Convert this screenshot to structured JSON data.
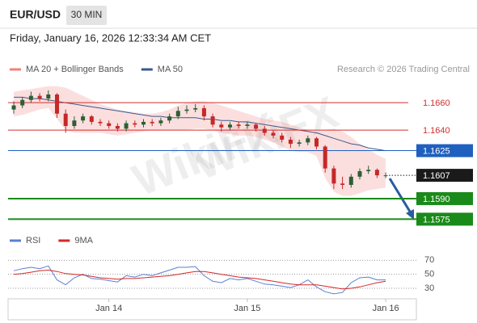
{
  "header": {
    "symbol": "EUR/USD",
    "timeframe": "30 MIN",
    "timestamp": "Friday, January 16, 2026 12:33:34 AM CET"
  },
  "watermark": "WikiFX",
  "chart_data": [
    {
      "type": "candlestick",
      "credit": "Research © 2026 Trading Central",
      "categories": [
        null,
        null,
        null,
        null,
        null,
        null,
        null,
        null,
        null,
        null,
        null,
        "Jan 14",
        null,
        null,
        null,
        null,
        null,
        null,
        null,
        null,
        null,
        null,
        null,
        null,
        null,
        null,
        null,
        "Jan 15",
        null,
        null,
        null,
        null,
        null,
        null,
        null,
        null,
        null,
        null,
        null,
        null,
        null,
        null,
        null,
        "Jan 16"
      ],
      "open": [
        1.1655,
        1.1658,
        1.1662,
        1.1665,
        1.1663,
        1.1666,
        1.1652,
        1.1643,
        1.1647,
        1.165,
        1.1646,
        1.1645,
        1.1643,
        1.1641,
        1.1645,
        1.1644,
        1.1646,
        1.1645,
        1.1647,
        1.165,
        1.1654,
        1.1655,
        1.1656,
        1.165,
        1.1644,
        1.1642,
        1.1644,
        1.1643,
        1.1644,
        1.1641,
        1.1638,
        1.1636,
        1.1633,
        1.163,
        1.1631,
        1.1634,
        1.1628,
        1.1612,
        1.1601,
        1.16,
        1.1606,
        1.161,
        1.1611,
        1.1607
      ],
      "high": [
        1.1661,
        1.1664,
        1.1668,
        1.1667,
        1.1669,
        1.1667,
        1.1655,
        1.165,
        1.1652,
        1.1651,
        1.1648,
        1.1647,
        1.1645,
        1.1647,
        1.1647,
        1.1648,
        1.1648,
        1.1649,
        1.1652,
        1.1657,
        1.1658,
        1.1659,
        1.1658,
        1.1652,
        1.1646,
        1.1646,
        1.1646,
        1.1646,
        1.1645,
        1.1643,
        1.164,
        1.1638,
        1.1635,
        1.1633,
        1.1636,
        1.1635,
        1.1629,
        1.1614,
        1.1606,
        1.1608,
        1.1612,
        1.1614,
        1.1612,
        1.1609
      ],
      "low": [
        1.1652,
        1.1656,
        1.166,
        1.1661,
        1.1661,
        1.1649,
        1.1638,
        1.1641,
        1.1645,
        1.1644,
        1.1643,
        1.1641,
        1.1639,
        1.1639,
        1.1642,
        1.1642,
        1.1643,
        1.1643,
        1.1645,
        1.1648,
        1.1652,
        1.1653,
        1.1647,
        1.1642,
        1.1639,
        1.164,
        1.1641,
        1.1641,
        1.1639,
        1.1636,
        1.1634,
        1.1631,
        1.1627,
        1.1628,
        1.1629,
        1.1626,
        1.1609,
        1.1597,
        1.1597,
        1.1598,
        1.1604,
        1.1608,
        1.1605,
        1.1605
      ],
      "close": [
        1.1658,
        1.1662,
        1.1665,
        1.1663,
        1.1666,
        1.1652,
        1.1643,
        1.1647,
        1.165,
        1.1646,
        1.1645,
        1.1643,
        1.1641,
        1.1645,
        1.1644,
        1.1646,
        1.1645,
        1.1647,
        1.165,
        1.1654,
        1.1655,
        1.1656,
        1.165,
        1.1644,
        1.1642,
        1.1644,
        1.1643,
        1.1644,
        1.1641,
        1.1638,
        1.1636,
        1.1633,
        1.163,
        1.1631,
        1.1634,
        1.1628,
        1.1612,
        1.1601,
        1.16,
        1.1606,
        1.161,
        1.1611,
        1.1607,
        1.1607
      ],
      "up_color": "#2f5e34",
      "down_color": "#c62828",
      "series": [
        {
          "name": "MA 20 + Bollinger Bands",
          "color": "#f08080",
          "upper": [
            1.1668,
            1.1669,
            1.167,
            1.1671,
            1.1672,
            1.1672,
            1.1671,
            1.1668,
            1.1665,
            1.1662,
            1.1659,
            1.1657,
            1.1655,
            1.1654,
            1.1653,
            1.1652,
            1.1652,
            1.1653,
            1.1655,
            1.1658,
            1.166,
            1.1661,
            1.1661,
            1.166,
            1.1658,
            1.1656,
            1.1654,
            1.1652,
            1.165,
            1.1648,
            1.1647,
            1.1646,
            1.1644,
            1.1642,
            1.164,
            1.1639,
            1.164,
            1.1641,
            1.1639,
            1.1635,
            1.163,
            1.1626,
            1.1622,
            1.1619
          ],
          "lower": [
            1.165,
            1.1651,
            1.1653,
            1.1655,
            1.1656,
            1.1648,
            1.164,
            1.1638,
            1.1638,
            1.1638,
            1.1638,
            1.1637,
            1.1636,
            1.1637,
            1.1638,
            1.1639,
            1.164,
            1.164,
            1.164,
            1.164,
            1.164,
            1.1641,
            1.1641,
            1.164,
            1.1638,
            1.1637,
            1.1636,
            1.1636,
            1.1635,
            1.1633,
            1.1631,
            1.1628,
            1.1625,
            1.1624,
            1.1624,
            1.1621,
            1.1605,
            1.1595,
            1.1592,
            1.1592,
            1.1594,
            1.1596,
            1.1597,
            1.1598
          ]
        },
        {
          "name": "MA 50",
          "color": "#3b5a8c",
          "values": [
            1.1664,
            1.1664,
            1.1663,
            1.1663,
            1.1662,
            1.1661,
            1.166,
            1.1659,
            1.1658,
            1.1657,
            1.1656,
            1.1655,
            1.1654,
            1.1653,
            1.1652,
            1.1651,
            1.165,
            1.165,
            1.1649,
            1.1649,
            1.1649,
            1.1649,
            1.1648,
            1.1648,
            1.1647,
            1.1647,
            1.1646,
            1.1646,
            1.1645,
            1.1644,
            1.1643,
            1.1642,
            1.1641,
            1.164,
            1.1639,
            1.1638,
            1.1636,
            1.1634,
            1.1632,
            1.163,
            1.1629,
            1.1627,
            1.1626,
            1.1625
          ]
        }
      ],
      "ylim": [
        1.1567,
        1.1676
      ],
      "levels": [
        {
          "value": 1.166,
          "label": "1.1660",
          "color": "#d32f2f",
          "boxed": false,
          "style": "solid"
        },
        {
          "value": 1.164,
          "label": "1.1640",
          "color": "#d32f2f",
          "boxed": false,
          "style": "solid"
        },
        {
          "value": 1.1625,
          "label": "1.1625",
          "color": "#1f5fbf",
          "boxed": true,
          "style": "solid"
        },
        {
          "value": 1.1607,
          "label": "1.1607",
          "color": "#1a1a1a",
          "boxed": true,
          "style": "dotted"
        },
        {
          "value": 1.159,
          "label": "1.1590",
          "color": "#1a8a1a",
          "boxed": true,
          "style": "thick"
        },
        {
          "value": 1.1575,
          "label": "1.1575",
          "color": "#1a8a1a",
          "boxed": true,
          "style": "thick"
        }
      ]
    },
    {
      "type": "line",
      "series": [
        {
          "name": "RSI",
          "color": "#5b7fd0",
          "values": [
            55,
            58,
            60,
            58,
            62,
            42,
            35,
            45,
            50,
            44,
            43,
            41,
            39,
            48,
            46,
            50,
            48,
            52,
            56,
            60,
            60,
            61,
            48,
            40,
            38,
            44,
            42,
            44,
            40,
            36,
            35,
            33,
            31,
            35,
            42,
            32,
            25,
            22,
            24,
            38,
            45,
            46,
            42,
            42
          ]
        },
        {
          "name": "9MA",
          "color": "#d62728",
          "values": [
            50,
            51,
            53,
            55,
            56,
            54,
            51,
            50,
            49,
            47,
            45,
            44,
            43,
            44,
            44,
            45,
            46,
            47,
            48,
            50,
            52,
            54,
            54,
            52,
            50,
            48,
            46,
            45,
            44,
            42,
            40,
            38,
            36,
            35,
            35,
            35,
            33,
            31,
            29,
            30,
            32,
            35,
            38,
            40
          ]
        }
      ],
      "ylim": [
        15,
        90
      ],
      "yticks": [
        70,
        50,
        30
      ],
      "grid": true
    }
  ]
}
